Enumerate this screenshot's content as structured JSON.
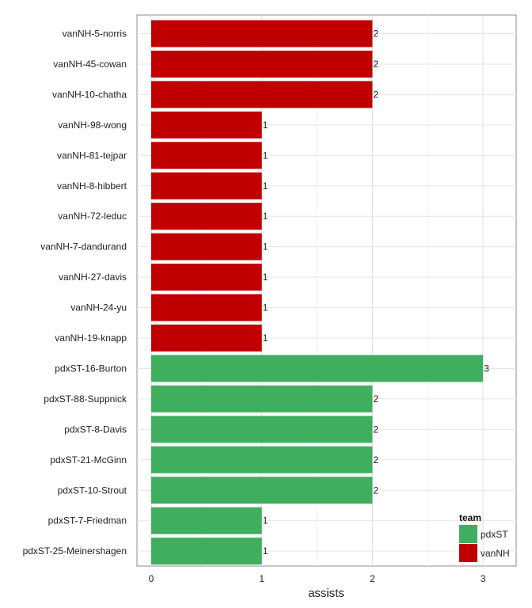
{
  "chart_data": {
    "type": "bar",
    "orientation": "horizontal",
    "xlabel": "assists",
    "ylabel": "",
    "xlim": [
      0,
      3
    ],
    "x_ticks": [
      0,
      1,
      2,
      3
    ],
    "grid": true,
    "legend_position": "bottom-right",
    "legend": {
      "title": "team",
      "entries": [
        {
          "name": "pdxST",
          "color": "#40ae5f"
        },
        {
          "name": "vanNH",
          "color": "#c00000"
        }
      ]
    },
    "categories": [
      "vanNH-5-norris",
      "vanNH-45-cowan",
      "vanNH-10-chatha",
      "vanNH-98-wong",
      "vanNH-81-tejpar",
      "vanNH-8-hibbert",
      "vanNH-72-leduc",
      "vanNH-7-dandurand",
      "vanNH-27-davis",
      "vanNH-24-yu",
      "vanNH-19-knapp",
      "pdxST-16-Burton",
      "pdxST-88-Suppnick",
      "pdxST-8-Davis",
      "pdxST-21-McGinn",
      "pdxST-10-Strout",
      "pdxST-7-Friedman",
      "pdxST-25-Meinershagen"
    ],
    "values": [
      2,
      2,
      2,
      1,
      1,
      1,
      1,
      1,
      1,
      1,
      1,
      3,
      2,
      2,
      2,
      2,
      1,
      1
    ],
    "teams": [
      "vanNH",
      "vanNH",
      "vanNH",
      "vanNH",
      "vanNH",
      "vanNH",
      "vanNH",
      "vanNH",
      "vanNH",
      "vanNH",
      "vanNH",
      "pdxST",
      "pdxST",
      "pdxST",
      "pdxST",
      "pdxST",
      "pdxST",
      "pdxST"
    ]
  }
}
